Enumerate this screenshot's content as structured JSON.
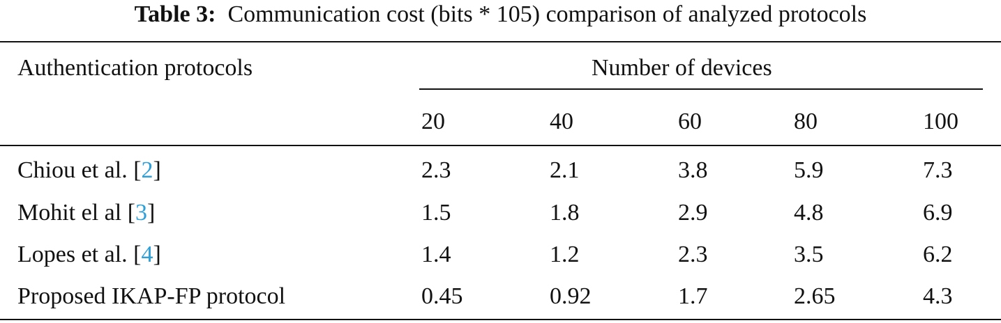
{
  "caption": {
    "label": "Table 3:",
    "text": "Communication cost (bits * 105) comparison of analyzed protocols"
  },
  "table": {
    "row_header": "Authentication protocols",
    "group_header": "Number of devices",
    "columns": [
      "20",
      "40",
      "60",
      "80",
      "100"
    ],
    "rows": [
      {
        "name": "Chiou et al. ",
        "ref": "2",
        "values": [
          "2.3",
          "2.1",
          "3.8",
          "5.9",
          "7.3"
        ]
      },
      {
        "name": "Mohit el al ",
        "ref": "3",
        "values": [
          "1.5",
          "1.8",
          "2.9",
          "4.8",
          "6.9"
        ]
      },
      {
        "name": "Lopes et al. ",
        "ref": "4",
        "values": [
          "1.4",
          "1.2",
          "2.3",
          "3.5",
          "6.2"
        ]
      },
      {
        "name": "Proposed IKAP-FP protocol",
        "ref": null,
        "values": [
          "0.45",
          "0.92",
          "1.7",
          "2.65",
          "4.3"
        ]
      }
    ]
  }
}
